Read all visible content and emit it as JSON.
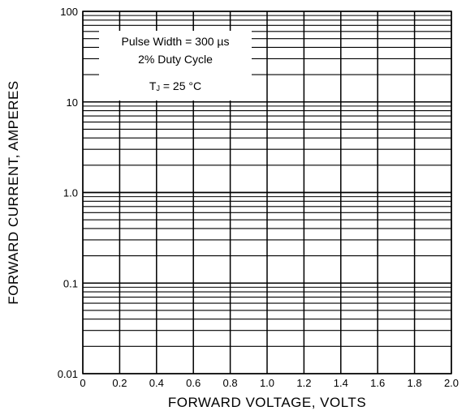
{
  "chart_data": {
    "type": "line",
    "title": "",
    "xlabel": "FORWARD VOLTAGE, VOLTS",
    "ylabel": "FORWARD CURRENT, AMPERES",
    "xlim": [
      0,
      2.0
    ],
    "ylim": [
      0.01,
      100
    ],
    "yscale": "log",
    "grid": true,
    "x_ticks": [
      0,
      0.2,
      0.4,
      0.6,
      0.8,
      1.0,
      1.2,
      1.4,
      1.6,
      1.8,
      2.0
    ],
    "x_tick_labels": [
      "0",
      "0.2",
      "0.4",
      "0.6",
      "0.8",
      "1.0",
      "1.2",
      "1.4",
      "1.6",
      "1.8",
      "2.0"
    ],
    "y_ticks": [
      0.01,
      0.1,
      1,
      10,
      100
    ],
    "y_tick_labels": [
      "0.01",
      "0.1",
      "1.0",
      "10",
      "100"
    ],
    "series": [],
    "annotations": {
      "pulse": "Pulse Width = 300 µs",
      "duty": "2% Duty Cycle",
      "temp_prefix": "T",
      "temp_sub": "J",
      "temp_suffix": " = 25 °C"
    }
  }
}
